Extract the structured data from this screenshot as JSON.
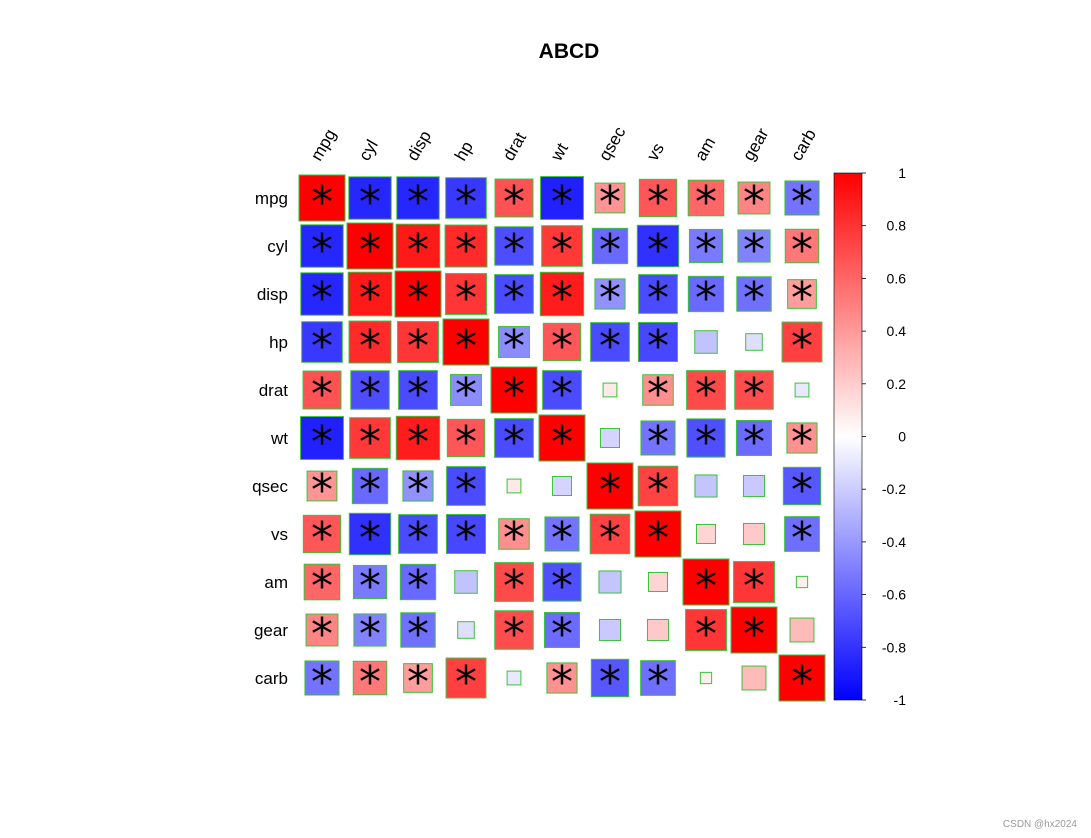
{
  "chart_data": {
    "type": "heatmap",
    "title": "ABCD",
    "variables": [
      "mpg",
      "cyl",
      "disp",
      "hp",
      "drat",
      "wt",
      "qsec",
      "vs",
      "am",
      "gear",
      "carb"
    ],
    "matrix": [
      [
        1.0,
        -0.85,
        -0.85,
        -0.78,
        0.68,
        -0.87,
        0.42,
        0.66,
        0.6,
        0.48,
        -0.55
      ],
      [
        -0.85,
        1.0,
        0.9,
        0.83,
        -0.7,
        0.78,
        -0.59,
        -0.81,
        -0.52,
        -0.49,
        0.53
      ],
      [
        -0.85,
        0.9,
        1.0,
        0.79,
        -0.71,
        0.89,
        -0.43,
        -0.71,
        -0.59,
        -0.56,
        0.39
      ],
      [
        -0.78,
        0.83,
        0.79,
        1.0,
        -0.45,
        0.66,
        -0.71,
        -0.72,
        -0.24,
        -0.13,
        0.75
      ],
      [
        0.68,
        -0.7,
        -0.71,
        -0.45,
        1.0,
        -0.71,
        0.09,
        0.44,
        0.71,
        0.7,
        -0.09
      ],
      [
        -0.87,
        0.78,
        0.89,
        0.66,
        -0.71,
        1.0,
        -0.17,
        -0.55,
        -0.69,
        -0.58,
        0.43
      ],
      [
        0.42,
        -0.59,
        -0.43,
        -0.71,
        0.09,
        -0.17,
        1.0,
        0.74,
        -0.23,
        -0.21,
        -0.66
      ],
      [
        0.66,
        -0.81,
        -0.71,
        -0.72,
        0.44,
        -0.55,
        0.74,
        1.0,
        0.17,
        0.21,
        -0.57
      ],
      [
        0.6,
        -0.52,
        -0.59,
        -0.24,
        0.71,
        -0.69,
        -0.23,
        0.17,
        1.0,
        0.79,
        0.06
      ],
      [
        0.48,
        -0.49,
        -0.56,
        -0.13,
        0.7,
        -0.58,
        -0.21,
        0.21,
        0.79,
        1.0,
        0.27
      ],
      [
        -0.55,
        0.53,
        0.39,
        0.75,
        -0.09,
        0.43,
        -0.66,
        -0.57,
        0.06,
        0.27,
        1.0
      ]
    ],
    "significant": [
      [
        true,
        true,
        true,
        true,
        true,
        true,
        true,
        true,
        true,
        true,
        true
      ],
      [
        true,
        true,
        true,
        true,
        true,
        true,
        true,
        true,
        true,
        true,
        true
      ],
      [
        true,
        true,
        true,
        true,
        true,
        true,
        true,
        true,
        true,
        true,
        true
      ],
      [
        true,
        true,
        true,
        true,
        true,
        true,
        true,
        true,
        false,
        false,
        true
      ],
      [
        true,
        true,
        true,
        true,
        true,
        true,
        false,
        true,
        true,
        true,
        false
      ],
      [
        true,
        true,
        true,
        true,
        true,
        true,
        false,
        true,
        true,
        true,
        true
      ],
      [
        true,
        true,
        true,
        true,
        false,
        false,
        true,
        true,
        false,
        false,
        true
      ],
      [
        true,
        true,
        true,
        true,
        true,
        true,
        true,
        true,
        false,
        false,
        true
      ],
      [
        true,
        true,
        true,
        false,
        true,
        true,
        false,
        false,
        true,
        true,
        false
      ],
      [
        true,
        true,
        true,
        false,
        true,
        true,
        false,
        false,
        true,
        true,
        false
      ],
      [
        true,
        true,
        true,
        true,
        false,
        true,
        true,
        true,
        false,
        false,
        true
      ]
    ],
    "significance_symbol": "*",
    "colorbar": {
      "range": [
        -1,
        1
      ],
      "ticks": [
        -1,
        -0.8,
        -0.6,
        -0.4,
        -0.2,
        0,
        0.2,
        0.4,
        0.6,
        0.8,
        1
      ],
      "tick_labels": [
        "-1",
        "-0.8",
        "-0.6",
        "-0.4",
        "-0.2",
        "0",
        "0.2",
        "0.4",
        "0.6",
        "0.8",
        "1"
      ],
      "low_color": "#0000FF",
      "mid_color": "#FFFFFF",
      "high_color": "#FF0000"
    },
    "cell_border_color": "#3BC23B",
    "grid": false
  },
  "watermark": "CSDN @hx2024"
}
